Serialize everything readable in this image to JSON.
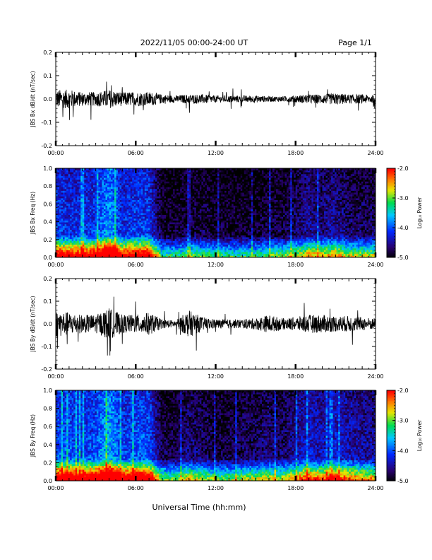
{
  "header": {
    "date_range": "2022/11/05  00:00-24:00 UT",
    "page": "Page 1/1"
  },
  "xlabel": "Universal Time (hh:mm)",
  "colorbar": {
    "label": "Log₁₀ Power",
    "ticks": [
      "-2.0",
      "-3.0",
      "-4.0",
      "-5.0"
    ]
  },
  "chart_data": [
    {
      "type": "line",
      "ylabel": "JBS Bx dB/dt (nT/sec)",
      "xlim": [
        0,
        24
      ],
      "ylim": [
        -0.2,
        0.2
      ],
      "x_ticks": [
        "00:00",
        "06:00",
        "12:00",
        "18:00",
        "24:00"
      ],
      "y_ticks": [
        "0.2",
        "0.1",
        "0.0",
        "-0.1",
        "-0.2"
      ],
      "envelope": {
        "hours": [
          0,
          1,
          2,
          3,
          4,
          5,
          6,
          7,
          8,
          9,
          10,
          11,
          12,
          13,
          14,
          15,
          16,
          17,
          18,
          19,
          20,
          21,
          22,
          23,
          24
        ],
        "amplitude": [
          0.04,
          0.04,
          0.03,
          0.03,
          0.04,
          0.03,
          0.03,
          0.03,
          0.02,
          0.015,
          0.02,
          0.02,
          0.015,
          0.015,
          0.015,
          0.015,
          0.012,
          0.012,
          0.015,
          0.02,
          0.02,
          0.025,
          0.02,
          0.02,
          0.015
        ],
        "min_value": -0.09
      }
    },
    {
      "type": "heatmap",
      "ylabel": "JBS Bx Freq (Hz)",
      "xlim": [
        0,
        24
      ],
      "ylim": [
        0.0,
        1.0
      ],
      "x_ticks": [
        "00:00",
        "06:00",
        "12:00",
        "18:00",
        "24:00"
      ],
      "y_ticks": [
        "1.0",
        "0.8",
        "0.6",
        "0.4",
        "0.2",
        "0.0"
      ],
      "color_range": [
        -5.0,
        -2.0
      ],
      "colorbar_label": "Log₁₀ Power",
      "activity_hours": [
        0,
        1,
        2,
        3,
        4,
        5,
        6,
        7,
        8,
        9,
        10,
        11,
        12,
        13,
        14,
        15,
        16,
        17,
        18,
        19,
        20,
        21,
        22,
        23,
        24
      ],
      "background_log_power": [
        -4.0,
        -4.1,
        -4.1,
        -4.0,
        -3.6,
        -4.1,
        -4.0,
        -4.0,
        -4.8,
        -4.8,
        -4.7,
        -4.7,
        -4.8,
        -4.8,
        -4.8,
        -4.8,
        -4.7,
        -4.7,
        -4.6,
        -4.4,
        -4.5,
        -4.4,
        -4.6,
        -4.6,
        -4.6
      ]
    },
    {
      "type": "line",
      "ylabel": "JBS By dB/dt (nT/sec)",
      "xlim": [
        0,
        24
      ],
      "ylim": [
        -0.2,
        0.2
      ],
      "x_ticks": [
        "00:00",
        "06:00",
        "12:00",
        "18:00",
        "24:00"
      ],
      "y_ticks": [
        "0.2",
        "0.1",
        "0.0",
        "-0.1",
        "-0.2"
      ],
      "envelope": {
        "hours": [
          0,
          1,
          2,
          3,
          4,
          5,
          6,
          7,
          8,
          9,
          10,
          11,
          12,
          13,
          14,
          15,
          16,
          17,
          18,
          19,
          20,
          21,
          22,
          23,
          24
        ],
        "amplitude": [
          0.06,
          0.05,
          0.04,
          0.04,
          0.07,
          0.04,
          0.04,
          0.05,
          0.02,
          0.015,
          0.06,
          0.03,
          0.02,
          0.02,
          0.02,
          0.025,
          0.04,
          0.025,
          0.03,
          0.04,
          0.04,
          0.035,
          0.035,
          0.03,
          0.025
        ],
        "min_value": -0.14
      }
    },
    {
      "type": "heatmap",
      "ylabel": "JBS By Freq (Hz)",
      "xlim": [
        0,
        24
      ],
      "ylim": [
        0.0,
        1.0
      ],
      "x_ticks": [
        "00:00",
        "06:00",
        "12:00",
        "18:00",
        "24:00"
      ],
      "y_ticks": [
        "1.0",
        "0.8",
        "0.6",
        "0.4",
        "0.2",
        "0.0"
      ],
      "color_range": [
        -5.0,
        -2.0
      ],
      "colorbar_label": "Log₁₀ Power",
      "activity_hours": [
        0,
        1,
        2,
        3,
        4,
        5,
        6,
        7,
        8,
        9,
        10,
        11,
        12,
        13,
        14,
        15,
        16,
        17,
        18,
        19,
        20,
        21,
        22,
        23,
        24
      ],
      "background_log_power": [
        -3.9,
        -3.9,
        -4.0,
        -3.9,
        -3.5,
        -4.0,
        -3.9,
        -3.9,
        -4.7,
        -4.7,
        -4.5,
        -4.6,
        -4.7,
        -4.7,
        -4.6,
        -4.6,
        -4.5,
        -4.6,
        -4.4,
        -4.2,
        -4.3,
        -4.2,
        -4.3,
        -4.4,
        -4.4
      ]
    }
  ]
}
